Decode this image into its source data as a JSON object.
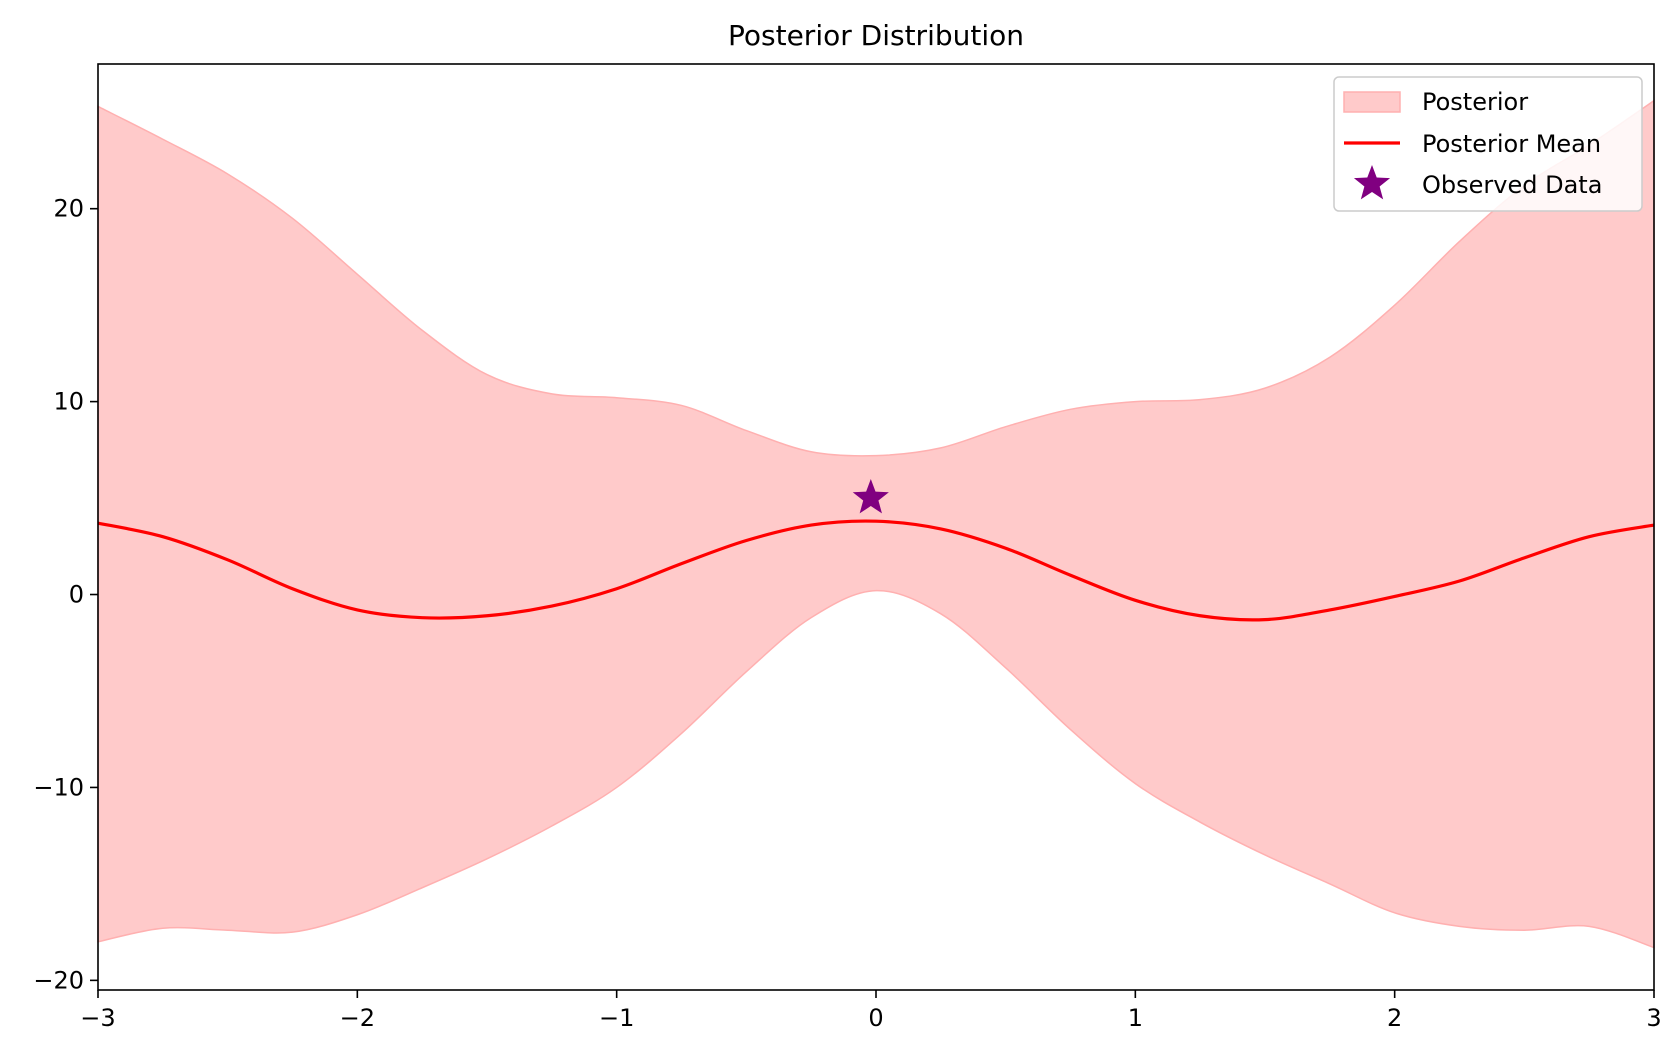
{
  "chart_data": {
    "type": "area",
    "title": "Posterior Distribution",
    "xlabel": "",
    "ylabel": "",
    "xlim": [
      -3,
      3
    ],
    "ylim": [
      -20.5,
      27.5
    ],
    "xticks": [
      -3,
      -2,
      -1,
      0,
      1,
      2,
      3
    ],
    "xtick_labels": [
      "−3",
      "−2",
      "−1",
      "0",
      "1",
      "2",
      "3"
    ],
    "yticks": [
      -20,
      -10,
      0,
      10,
      20
    ],
    "ytick_labels": [
      "−20",
      "−10",
      "0",
      "10",
      "20"
    ],
    "grid": false,
    "legend_position": "top-right",
    "series": [
      {
        "name": "Posterior",
        "kind": "band",
        "color": "#ffcaca",
        "edge_color": "#ffb0b0",
        "x": [
          -3.0,
          -2.75,
          -2.5,
          -2.25,
          -2.0,
          -1.75,
          -1.5,
          -1.25,
          -1.0,
          -0.75,
          -0.5,
          -0.25,
          0.0,
          0.25,
          0.5,
          0.75,
          1.0,
          1.25,
          1.5,
          1.75,
          2.0,
          2.25,
          2.5,
          2.75,
          3.0
        ],
        "upper": [
          25.3,
          23.6,
          21.8,
          19.5,
          16.6,
          13.7,
          11.4,
          10.4,
          10.2,
          9.8,
          8.5,
          7.4,
          7.2,
          7.6,
          8.7,
          9.6,
          10.0,
          10.1,
          10.7,
          12.3,
          15.0,
          18.3,
          21.2,
          23.3,
          25.6
        ],
        "lower": [
          -18.0,
          -17.3,
          -17.4,
          -17.5,
          -16.6,
          -15.2,
          -13.7,
          -12.0,
          -10.0,
          -7.2,
          -4.0,
          -1.2,
          0.2,
          -1.0,
          -3.8,
          -7.0,
          -9.8,
          -11.8,
          -13.5,
          -15.0,
          -16.5,
          -17.2,
          -17.4,
          -17.2,
          -18.3
        ]
      },
      {
        "name": "Posterior Mean",
        "kind": "line",
        "color": "#ff0000",
        "x": [
          -3.0,
          -2.75,
          -2.5,
          -2.25,
          -2.0,
          -1.75,
          -1.5,
          -1.25,
          -1.0,
          -0.75,
          -0.5,
          -0.25,
          0.0,
          0.25,
          0.5,
          0.75,
          1.0,
          1.25,
          1.5,
          1.75,
          2.0,
          2.25,
          2.5,
          2.75,
          3.0
        ],
        "y": [
          3.7,
          3.0,
          1.8,
          0.3,
          -0.8,
          -1.2,
          -1.1,
          -0.6,
          0.3,
          1.6,
          2.8,
          3.6,
          3.8,
          3.4,
          2.4,
          1.0,
          -0.3,
          -1.1,
          -1.3,
          -0.8,
          -0.1,
          0.7,
          1.9,
          3.0,
          3.6
        ]
      },
      {
        "name": "Observed Data",
        "kind": "scatter",
        "marker": "star",
        "color": "#800080",
        "points": [
          {
            "x": -0.02,
            "y": 5.0
          }
        ]
      }
    ]
  }
}
